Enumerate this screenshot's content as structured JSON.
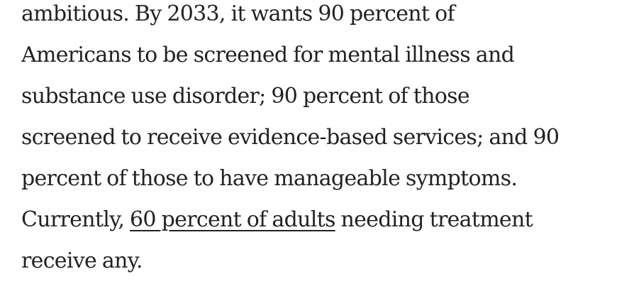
{
  "article": {
    "lines": [
      "ambitious. By 2033, it wants 90 percent of",
      "Americans to be screened for mental illness and",
      "substance use disorder; 90 percent of those",
      "screened to receive evidence-based services; and 90",
      "percent of those to have manageable symptoms."
    ],
    "last_line_prefix": "Currently, ",
    "link_text": "60 percent of adults",
    "last_line_suffix": " needing treatment",
    "final_line": "receive any."
  }
}
